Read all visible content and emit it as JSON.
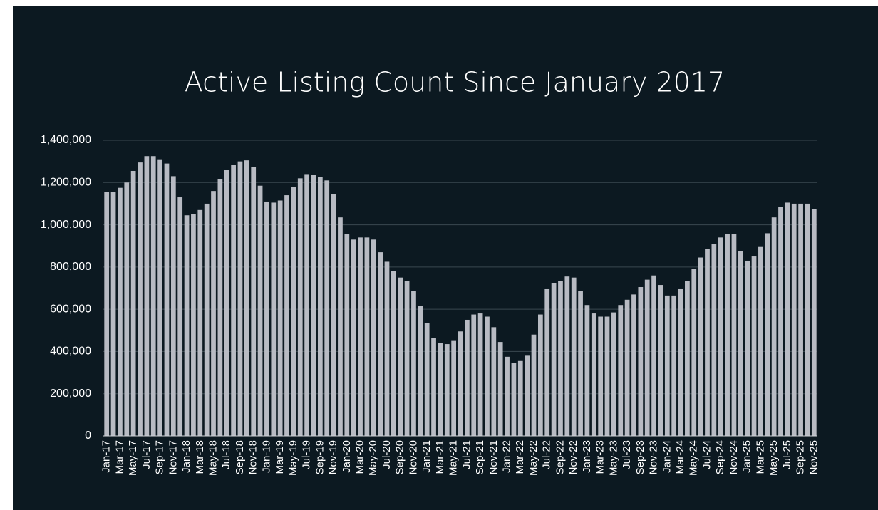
{
  "chart_data": {
    "type": "bar",
    "title": "Active Listing Count Since January 2017",
    "categories": [
      "Jan-17",
      null,
      "Mar-17",
      null,
      "May-17",
      null,
      "Jul-17",
      null,
      "Sep-17",
      null,
      "Nov-17",
      null,
      "Jan-18",
      null,
      "Mar-18",
      null,
      "May-18",
      null,
      "Jul-18",
      null,
      "Sep-18",
      null,
      "Nov-18",
      null,
      "Jan-19",
      null,
      "Mar-19",
      null,
      "May-19",
      null,
      "Jul-19",
      null,
      "Sep-19",
      null,
      "Nov-19",
      null,
      "Jan-20",
      null,
      "Mar-20",
      null,
      "May-20",
      null,
      "Jul-20",
      null,
      "Sep-20",
      null,
      "Nov-20",
      null,
      "Jan-21",
      null,
      "Mar-21",
      null,
      "May-21",
      null,
      "Jul-21",
      null,
      "Sep-21",
      null,
      "Nov-21",
      null,
      "Jan-22",
      null,
      "Mar-22",
      null,
      "May-22",
      null,
      "Jul-22",
      null,
      "Sep-22",
      null,
      "Nov-22",
      null,
      "Jan-23",
      null,
      "Mar-23",
      null,
      "May-23",
      null,
      "Jul-23",
      null,
      "Sep-23",
      null,
      "Nov-23",
      null,
      "Jan-24",
      null,
      "Mar-24",
      null,
      "May-24",
      null,
      "Jul-24",
      null,
      "Sep-24",
      null,
      "Nov-24",
      null,
      "Jan-25",
      null,
      "Mar-25",
      null,
      "May-25",
      null,
      "Jul-25",
      null,
      "Sep-25",
      null,
      "Nov-25"
    ],
    "values": [
      1155000,
      1155000,
      1175000,
      1200000,
      1255000,
      1295000,
      1325000,
      1325000,
      1310000,
      1290000,
      1230000,
      1130000,
      1045000,
      1050000,
      1070000,
      1100000,
      1160000,
      1215000,
      1260000,
      1285000,
      1300000,
      1305000,
      1275000,
      1185000,
      1110000,
      1105000,
      1115000,
      1140000,
      1180000,
      1220000,
      1240000,
      1235000,
      1225000,
      1210000,
      1145000,
      1035000,
      955000,
      930000,
      940000,
      940000,
      930000,
      870000,
      825000,
      780000,
      750000,
      735000,
      685000,
      615000,
      535000,
      465000,
      440000,
      435000,
      450000,
      495000,
      550000,
      575000,
      580000,
      565000,
      515000,
      445000,
      375000,
      345000,
      355000,
      380000,
      480000,
      575000,
      695000,
      725000,
      735000,
      755000,
      750000,
      685000,
      620000,
      580000,
      565000,
      565000,
      585000,
      620000,
      645000,
      670000,
      705000,
      740000,
      760000,
      715000,
      665000,
      665000,
      695000,
      735000,
      790000,
      845000,
      885000,
      910000,
      940000,
      955000,
      955000,
      875000,
      830000,
      850000,
      895000,
      960000,
      1035000,
      1085000,
      1105000,
      1100000,
      1100000,
      1100000,
      1075000
    ],
    "color": "#b8bbc3",
    "ylim": [
      0,
      1400000
    ],
    "yticks": [
      0,
      {
        "value": 200000,
        "label": "200,000"
      },
      {
        "value": 400000,
        "label": "400,000"
      },
      {
        "value": 600000,
        "label": "600,000"
      },
      {
        "value": 800000,
        "label": "800,000"
      },
      {
        "value": 1000000,
        "label": "1,000,000"
      },
      {
        "value": 1200000,
        "label": "1,200,000"
      },
      {
        "value": 1400000,
        "label": "1,400,000"
      }
    ],
    "grid": true
  }
}
